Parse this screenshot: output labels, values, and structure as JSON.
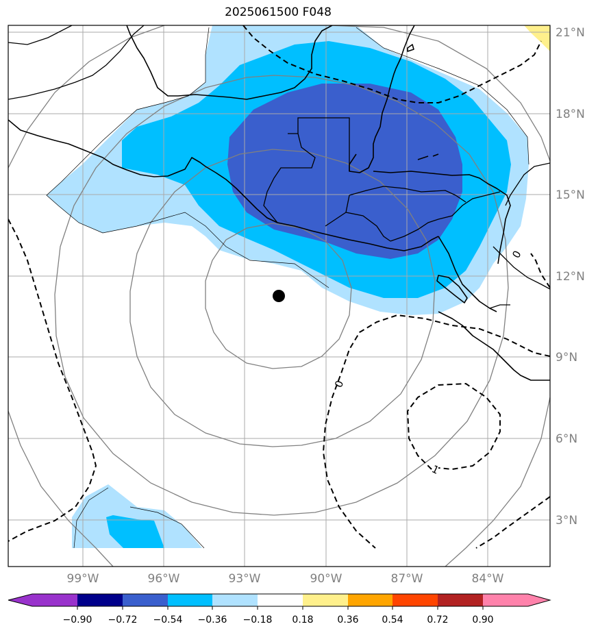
{
  "title": "2025061500 F048",
  "lat_labels": [
    "21°N",
    "18°N",
    "15°N",
    "12°N",
    "9°N",
    "6°N",
    "3°N"
  ],
  "lon_labels": [
    "99°W",
    "96°W",
    "93°W",
    "90°W",
    "87°W",
    "84°W"
  ],
  "contour_labels": [
    "0",
    "0",
    "-1"
  ],
  "colorbar": {
    "ticks": [
      "−0.90",
      "−0.72",
      "−0.54",
      "−0.36",
      "−0.18",
      "0.18",
      "0.36",
      "0.54",
      "0.72",
      "0.90"
    ],
    "colors": [
      "#9932cc",
      "#00008b",
      "#3a5fcd",
      "#00bfff",
      "#b0e2ff",
      "#ffffff",
      "#fff08c",
      "#ffa500",
      "#ff4500",
      "#b22222",
      "#ff82ab"
    ]
  },
  "fill_colors": {
    "light_blue": "#b0e2ff",
    "sky_blue": "#00bfff",
    "royal_blue": "#3a5fcd",
    "yellow": "#fff08c"
  },
  "storm_center": {
    "lat": 11.3,
    "lon": -91.7
  }
}
